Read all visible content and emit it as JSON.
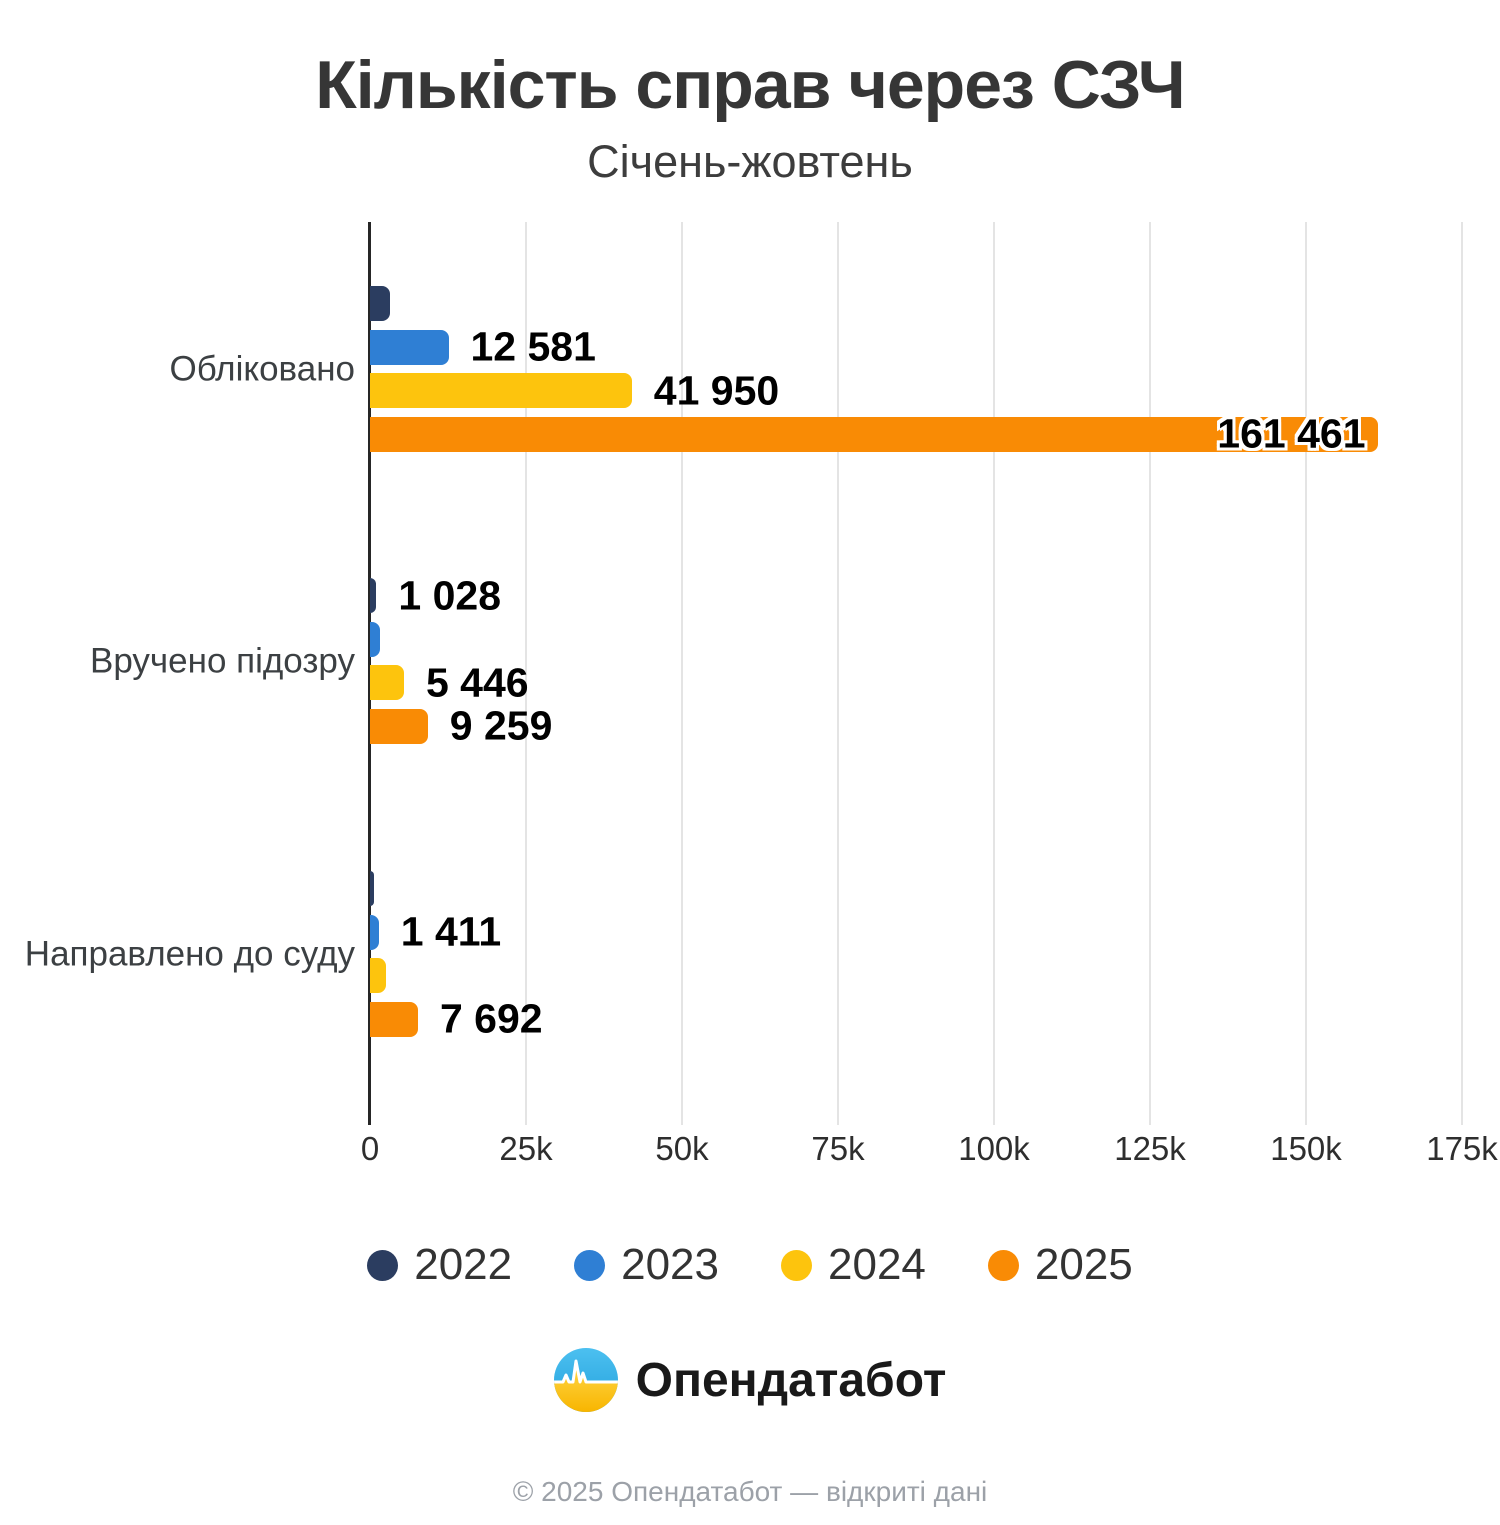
{
  "header": {
    "title": "Кількість справ через СЗЧ",
    "subtitle": "Січень-жовтень"
  },
  "chart_data": {
    "type": "bar",
    "orientation": "horizontal",
    "title": "Кількість справ через СЗЧ",
    "subtitle": "Січень-жовтень",
    "categories": [
      "Обліковано",
      "Вручено підозру",
      "Направлено до суду"
    ],
    "series": [
      {
        "name": "2022",
        "color": "#2b3d60",
        "values": [
          3200,
          1028,
          700
        ],
        "value_labels": [
          "",
          "1 028",
          ""
        ]
      },
      {
        "name": "2023",
        "color": "#2f7fd4",
        "values": [
          12581,
          1600,
          1411
        ],
        "value_labels": [
          "12 581",
          "",
          "1 411"
        ]
      },
      {
        "name": "2024",
        "color": "#fdc40d",
        "values": [
          41950,
          5446,
          2500
        ],
        "value_labels": [
          "41 950",
          "5 446",
          ""
        ]
      },
      {
        "name": "2025",
        "color": "#f98b05",
        "values": [
          161461,
          9259,
          7692
        ],
        "value_labels": [
          "161 461",
          "9 259",
          "7 692"
        ]
      }
    ],
    "x_ticks": [
      "0",
      "25k",
      "50k",
      "75k",
      "100k",
      "125k",
      "150k",
      "175k"
    ],
    "xlim": [
      0,
      175000
    ],
    "grid": true,
    "legend_position": "bottom"
  },
  "branding": {
    "logo_icon": "opendatabot-pulse-icon",
    "logo_text": "Опендатабот",
    "flag_blue": "#3bafe8",
    "flag_yellow": "#ffc821"
  },
  "footer": {
    "copyright": "© 2025 Опендатабот — відкриті дані"
  }
}
